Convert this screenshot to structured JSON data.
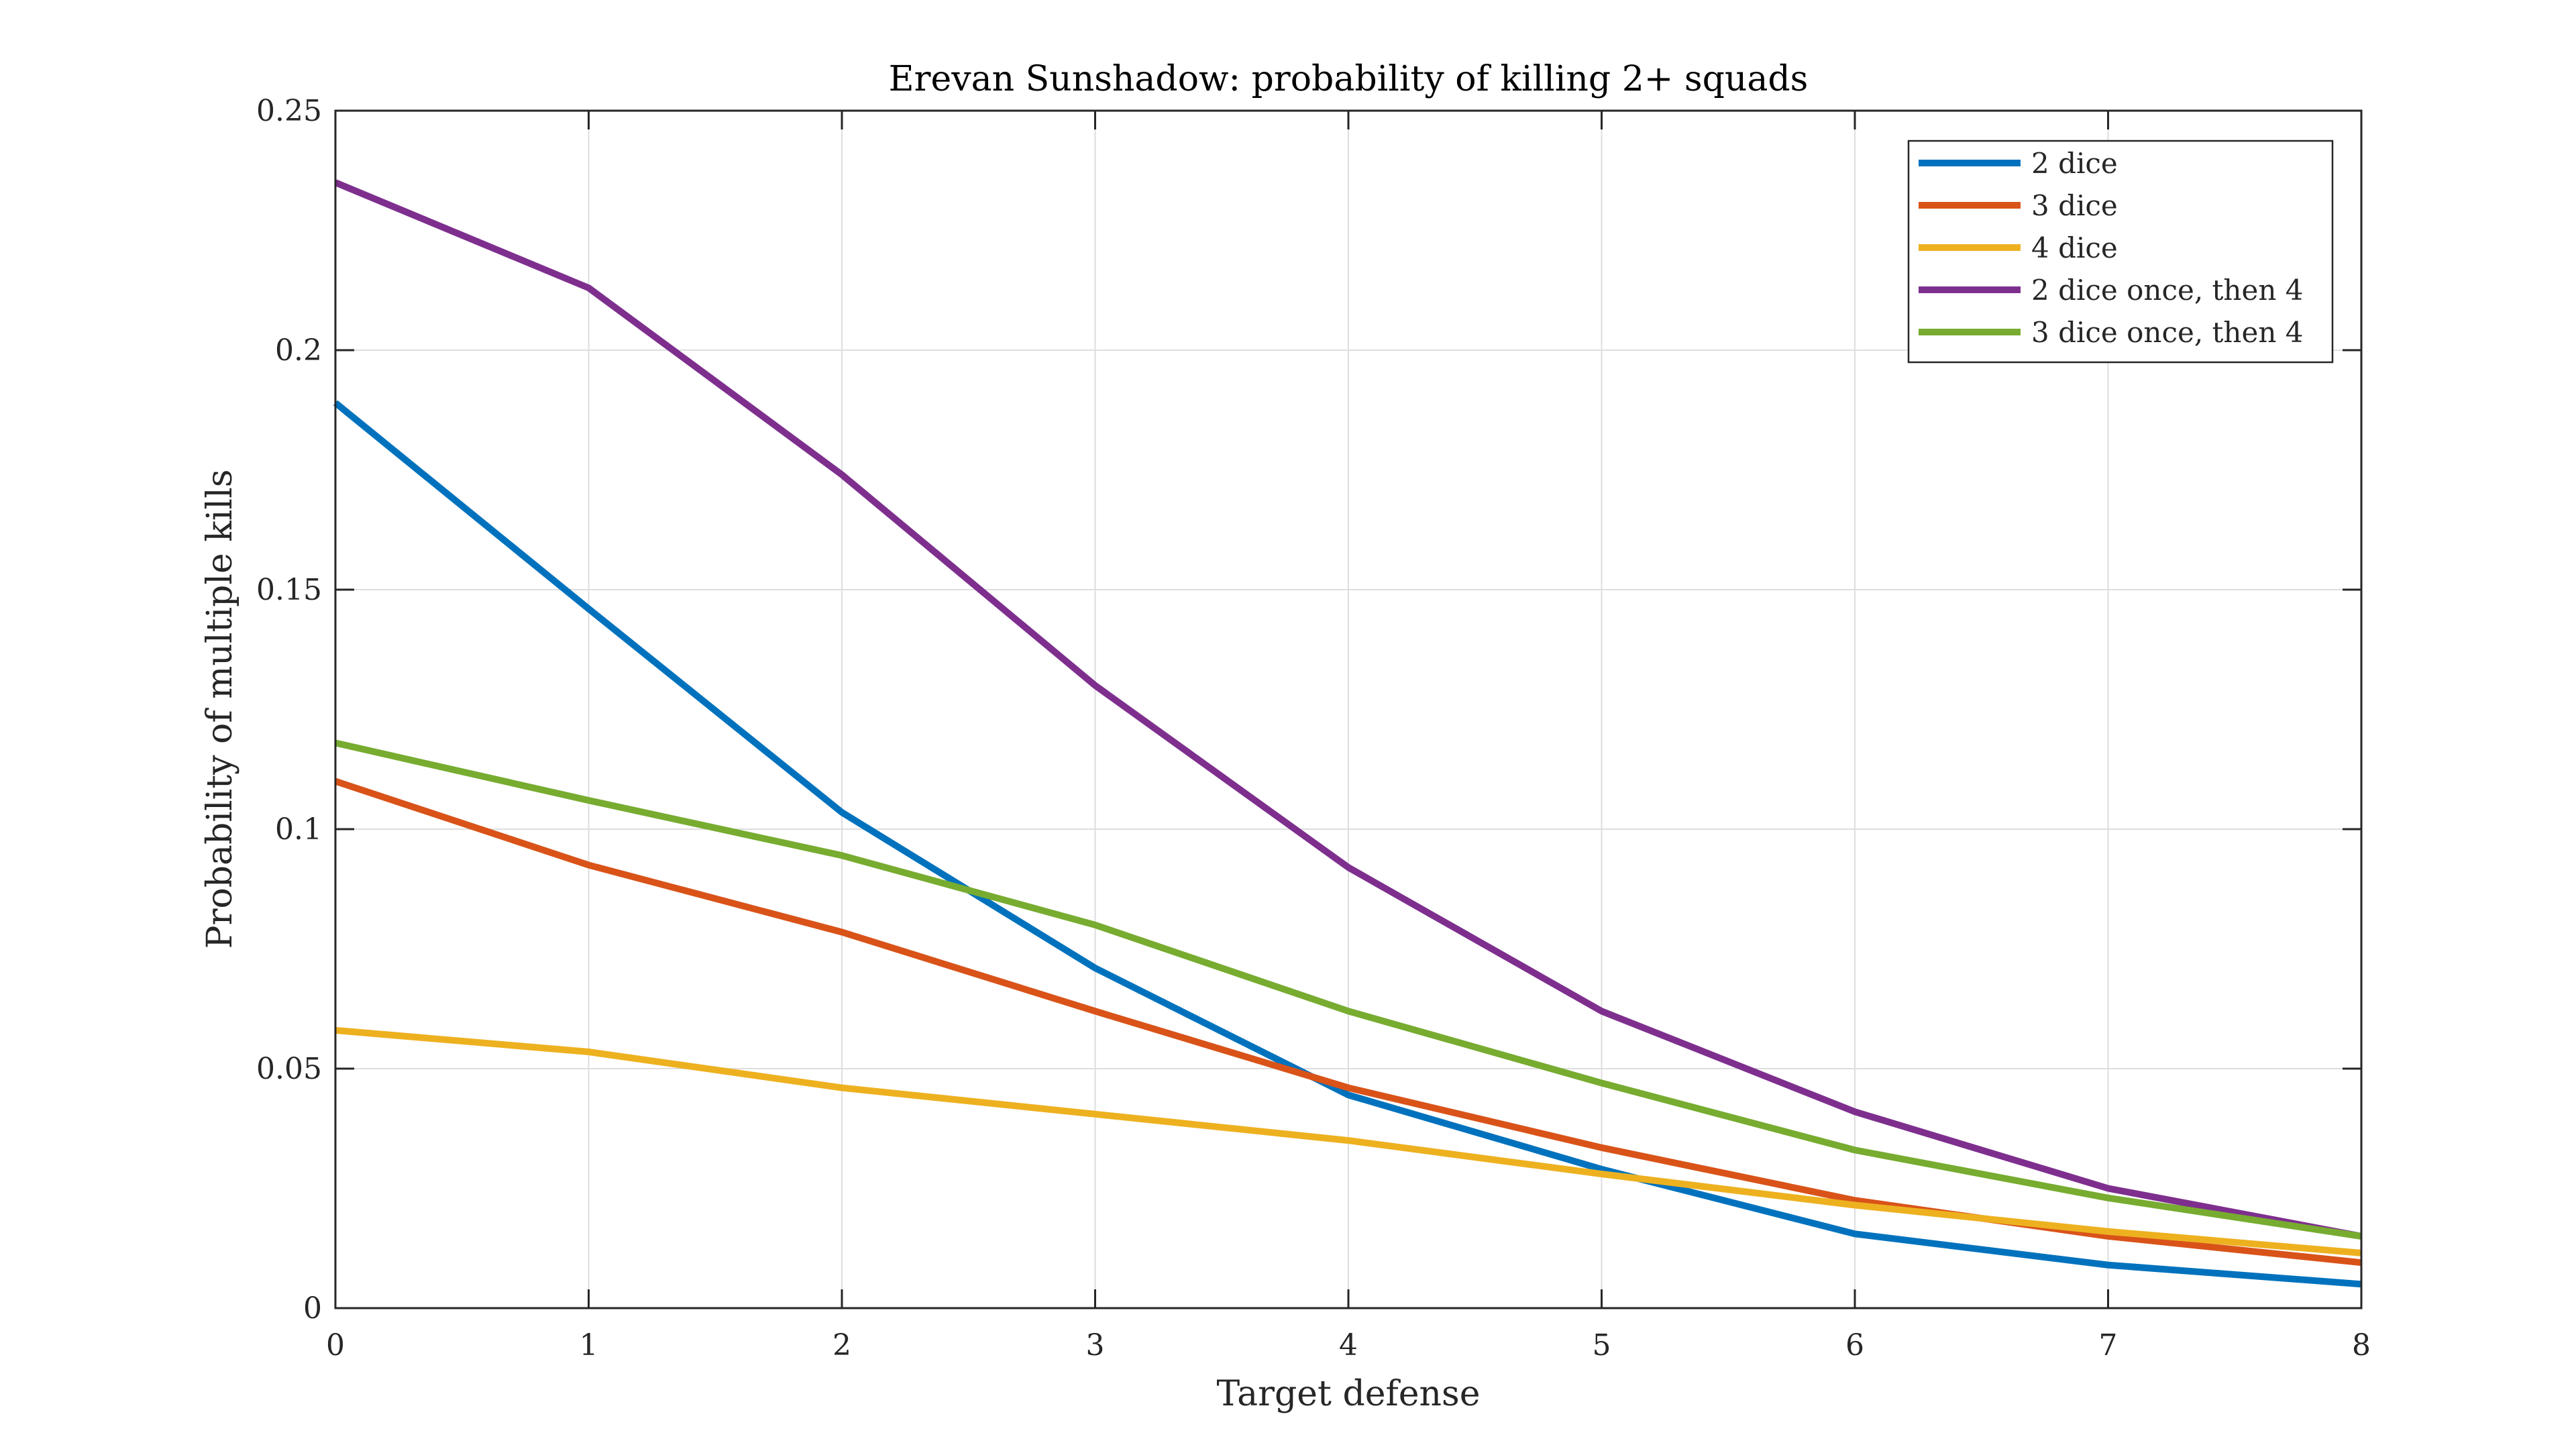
{
  "chart_data": {
    "type": "line",
    "title": "Erevan Sunshadow: probability of killing 2+ squads",
    "xlabel": "Target defense",
    "ylabel": "Probability of multiple kills",
    "x": [
      0,
      1,
      2,
      3,
      4,
      5,
      6,
      7,
      8
    ],
    "xlim": [
      0,
      8
    ],
    "ylim": [
      0,
      0.25
    ],
    "xticks": [
      "0",
      "1",
      "2",
      "3",
      "4",
      "5",
      "6",
      "7",
      "8"
    ],
    "yticks": [
      "0",
      "0.05",
      "0.1",
      "0.15",
      "0.2",
      "0.25"
    ],
    "grid": true,
    "legend_position": "top-right",
    "series": [
      {
        "name": "2 dice",
        "color": "#0072BD",
        "values": [
          0.189,
          0.146,
          0.1035,
          0.071,
          0.0445,
          0.029,
          0.0155,
          0.009,
          0.005
        ]
      },
      {
        "name": "3 dice",
        "color": "#D95319",
        "values": [
          0.11,
          0.0925,
          0.0785,
          0.062,
          0.046,
          0.0335,
          0.0225,
          0.015,
          0.0095
        ]
      },
      {
        "name": "4 dice",
        "color": "#EDB120",
        "values": [
          0.058,
          0.0535,
          0.046,
          0.0405,
          0.035,
          0.028,
          0.0215,
          0.016,
          0.0115
        ]
      },
      {
        "name": "2 dice once, then 4",
        "color": "#7E2F8E",
        "values": [
          0.235,
          0.213,
          0.174,
          0.13,
          0.092,
          0.062,
          0.041,
          0.025,
          0.015
        ]
      },
      {
        "name": "3 dice once, then 4",
        "color": "#77AC30",
        "values": [
          0.118,
          0.106,
          0.0945,
          0.08,
          0.062,
          0.047,
          0.033,
          0.023,
          0.015
        ]
      }
    ]
  }
}
